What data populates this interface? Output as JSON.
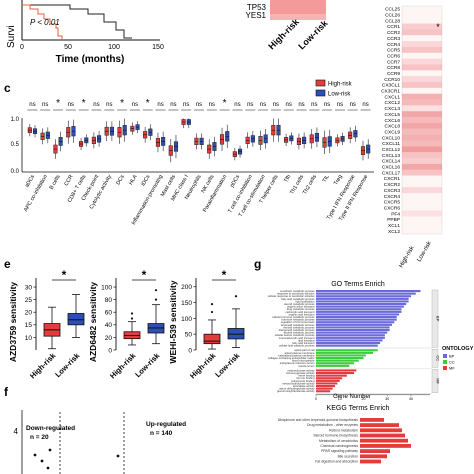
{
  "panels": {
    "c": "c",
    "e": "e",
    "f": "f",
    "g": "g"
  },
  "survival": {
    "ylabel": "Survi",
    "xlabel": "Time (months)",
    "pvalue": "P < 0.01",
    "ticks": [
      "0",
      "50",
      "100",
      "150"
    ],
    "colors": {
      "high": "#e6603c",
      "low": "#222222"
    }
  },
  "gene_panel": {
    "rows": [
      "TP53",
      "YES1"
    ],
    "columns": [
      "High-risk",
      "Low-risk"
    ]
  },
  "chemokine": {
    "top_mark": "*",
    "genes": [
      "CCL25",
      "CCL26",
      "CCL28",
      "CCR1",
      "CCR2",
      "CCR3",
      "CCR4",
      "CCR5",
      "CCR6",
      "CCR7",
      "CCR8",
      "CCR9",
      "CCR10",
      "CX3CL1",
      "CX3CR1",
      "CXCL1",
      "CXCL2",
      "CXCL3",
      "CXCL5",
      "CXCL6",
      "CXCL8",
      "CXCL9",
      "CXCL10",
      "CXCL11",
      "CXCL12",
      "CXCL13",
      "CXCL14",
      "CXCL16",
      "CXCL17",
      "CXCR1",
      "CXCR2",
      "CXCR3",
      "CXCR4",
      "CXCR5",
      "CXCR6",
      "PF4",
      "PPBP",
      "XCL1",
      "XCL2"
    ],
    "levels": [
      0.05,
      0.05,
      0.05,
      0.25,
      0.3,
      0.05,
      0.2,
      0.3,
      0.05,
      0.2,
      0.3,
      0.05,
      0.2,
      0.3,
      0.05,
      0.4,
      0.35,
      0.15,
      0.45,
      0.35,
      0.45,
      0.35,
      0.4,
      0.35,
      0.5,
      0.3,
      0.25,
      0.45,
      0.3,
      0.05,
      0.05,
      0.2,
      0.05,
      0.05,
      0.05,
      0.15,
      0.05,
      0.05,
      0.05
    ],
    "columns": [
      "High-risk",
      "Low-risk"
    ]
  },
  "immune": {
    "legend": [
      {
        "label": "High-risk",
        "color": "#e23c3c"
      },
      {
        "label": "Low-risk",
        "color": "#2c4fb5"
      }
    ],
    "yticks": [
      "0.0",
      "0.5",
      "1.0"
    ],
    "categories": [
      "aDCs",
      "APC co-inhibition",
      "B cells",
      "CCR",
      "CD8+ T cells",
      "Check-point",
      "Cytolytic activity",
      "DCs",
      "HLA",
      "iDCs",
      "Inflammation-promoting",
      "Mast cells",
      "MHC class I",
      "Neutrophils",
      "NK cells",
      "Parainflammation",
      "pDCs",
      "T cell co-inhibition",
      "T cell co-stimulation",
      "T helper cells",
      "Tfh",
      "Th1 cells",
      "Th2 cells",
      "TIL",
      "Treg",
      "Type I IFN Response",
      "Type II IFN Response"
    ],
    "significance": [
      "ns",
      "ns",
      "*",
      "ns",
      "*",
      "ns",
      "ns",
      "*",
      "ns",
      "*",
      "ns",
      "ns",
      "ns",
      "ns",
      "ns",
      "*",
      "ns",
      "ns",
      "ns",
      "ns",
      "ns",
      "ns",
      "ns",
      "ns",
      "ns",
      "ns",
      "ns"
    ],
    "medians_high": [
      0.82,
      0.7,
      0.45,
      0.78,
      0.55,
      0.62,
      0.8,
      0.78,
      0.85,
      0.73,
      0.58,
      0.42,
      0.98,
      0.6,
      0.45,
      0.64,
      0.35,
      0.62,
      0.62,
      0.82,
      0.63,
      0.6,
      0.65,
      0.58,
      0.62,
      0.72,
      0.42
    ],
    "medians_low": [
      0.8,
      0.72,
      0.6,
      0.8,
      0.62,
      0.65,
      0.8,
      0.82,
      0.88,
      0.78,
      0.6,
      0.5,
      0.98,
      0.6,
      0.5,
      0.7,
      0.4,
      0.65,
      0.65,
      0.82,
      0.66,
      0.62,
      0.68,
      0.6,
      0.65,
      0.75,
      0.45
    ]
  },
  "drugs": [
    {
      "ylabel": "AZD3759 sensitivity",
      "sig": "*",
      "yticks": [
        "10",
        "15",
        "20",
        "25",
        "30"
      ],
      "ymin": 5,
      "ymax": 32,
      "high": {
        "q1": 10.5,
        "med": 13,
        "q3": 15.5,
        "lo": 5.5,
        "hi": 22
      },
      "low": {
        "q1": 15,
        "med": 17,
        "q3": 19.5,
        "lo": 10,
        "hi": 27
      }
    },
    {
      "ylabel": "AZD6482 sensitivity",
      "sig": "*",
      "yticks": [
        "0",
        "20",
        "40",
        "60",
        "80",
        "100"
      ],
      "ymin": 0,
      "ymax": 108,
      "high": {
        "q1": 18,
        "med": 23,
        "q3": 29,
        "lo": 8,
        "hi": 45
      },
      "low": {
        "q1": 27,
        "med": 35,
        "q3": 42,
        "lo": 10,
        "hi": 72
      },
      "out_high": [
        50,
        58
      ],
      "out_low": [
        80,
        95
      ]
    },
    {
      "ylabel": "WEHI-539 sensitivity",
      "sig": "*",
      "yticks": [
        "0",
        "50",
        "100",
        "150",
        "200"
      ],
      "ymin": 0,
      "ymax": 215,
      "high": {
        "q1": 20,
        "med": 28,
        "q3": 50,
        "lo": 3,
        "hi": 95
      },
      "low": {
        "q1": 35,
        "med": 50,
        "q3": 68,
        "lo": 8,
        "hi": 130
      },
      "out_high": [
        120,
        145
      ],
      "out_low": [
        170
      ]
    }
  ],
  "drug_xlabels": [
    "High-risk",
    "Low-risk"
  ],
  "volcano": {
    "ytick": "4",
    "down_label": "Down-regulated",
    "down_n": "n = 20",
    "up_label": "Up-regulated",
    "up_n": "n = 140"
  },
  "go": {
    "title": "GO Terms Enrich",
    "xlabel": "Gene Number",
    "xticks": [
      "0",
      "10",
      "20",
      "30",
      "40"
    ],
    "bp_bars": [
      44,
      42,
      40,
      39,
      39,
      38,
      37,
      36,
      36,
      35,
      34,
      34,
      33,
      32,
      31,
      31,
      30,
      29,
      29,
      28,
      27,
      26
    ],
    "cc_bars": [
      26,
      24,
      21,
      20,
      18,
      16,
      14
    ],
    "mf_bars": [
      17,
      16,
      13,
      11,
      10,
      9,
      8,
      7,
      6
    ],
    "bp_terms": [
      "xenobiotic metabolic process",
      "response to xenobiotic stimulus",
      "cellular response to xenobiotic stimulus",
      "fatty acid metabolic process",
      "lipid localization",
      "steroid metabolic process",
      "organic anion transport",
      "drug metabolic process",
      "carboxylic acid transport",
      "organic acid transport",
      "cellular hormone metabolic process",
      "hormone metabolic process",
      "regulation of hormone levels",
      "terpenoid metabolic process",
      "retinoid metabolic process",
      "diterpenoid metabolic process",
      "alcohol metabolic process",
      "cellular ketone metabolic process",
      "monocarboxylic acid transport",
      "lipid transport",
      "fatty acid transport",
      "cellular lipid catabolic process"
    ],
    "cc_terms": [
      "apical part of cell",
      "apical plasma membrane",
      "basolateral plasma membrane",
      "collagen-containing extracellular matrix",
      "blood microparticle",
      "endoplasmic reticulum lumen",
      "vesicle lumen"
    ],
    "mf_terms": [
      "oxidoreductase activity",
      "monooxygenase activity",
      "heme binding",
      "iron ion binding",
      "tetrapyrrole binding",
      "steroid hydroxylase activity",
      "aromatase activity",
      "retinol dehydrogenase activity",
      "glucuronosyltransferase activity"
    ],
    "groups": [
      "BP",
      "CC",
      "MF"
    ],
    "legend_title": "ONTOLOGY",
    "colors": {
      "BP": "#6b6bd8",
      "CC": "#3ccd3c",
      "MF": "#e23c3c"
    }
  },
  "kegg": {
    "title": "KEGG Terms Enrich",
    "bars": [
      8,
      13,
      14,
      15,
      16,
      17,
      10,
      9,
      7
    ],
    "terms": [
      "Ubiquinone and other terpenoid-quinone biosynthesis",
      "Drug metabolism - other enzymes",
      "Retinol metabolism",
      "Steroid hormone biosynthesis",
      "Metabolism of xenobiotics",
      "Chemical carcinogenesis",
      "PPAR signaling pathway",
      "Bile secretion",
      "Fat digestion and absorption"
    ]
  }
}
